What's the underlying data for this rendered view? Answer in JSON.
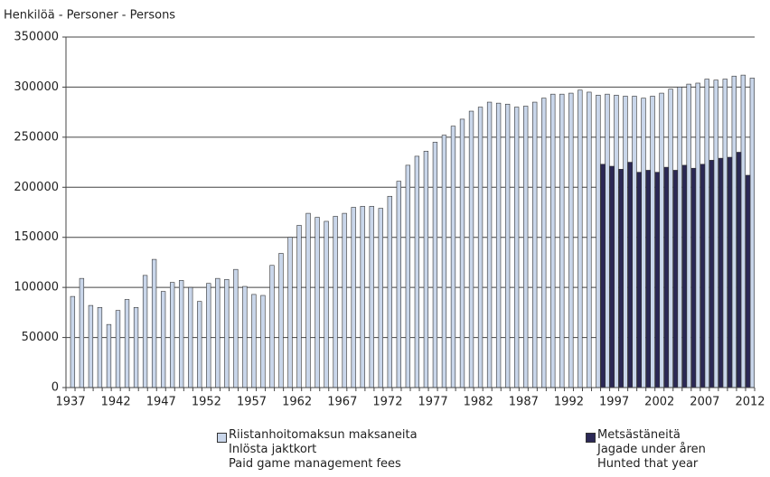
{
  "chart_data": {
    "type": "bar",
    "y_label": "Henkilöä - Personer - Persons",
    "categories": [
      "1937",
      null,
      null,
      null,
      null,
      "1942",
      null,
      null,
      null,
      null,
      "1947",
      null,
      null,
      null,
      null,
      "1952",
      null,
      null,
      null,
      null,
      "1957",
      null,
      null,
      null,
      null,
      "1962",
      null,
      null,
      null,
      null,
      "1967",
      null,
      null,
      null,
      null,
      "1972",
      null,
      null,
      null,
      null,
      "1977",
      null,
      null,
      null,
      null,
      "1982",
      null,
      null,
      null,
      null,
      "1987",
      null,
      null,
      null,
      null,
      "1992",
      null,
      null,
      null,
      null,
      "1997",
      null,
      null,
      null,
      null,
      "2002",
      null,
      null,
      null,
      null,
      "2007",
      null,
      null,
      null,
      null,
      "2012"
    ],
    "series": [
      {
        "name": "Riistanhoitomaksun maksaneita\nInlösta jaktkort\nPaid game management fees",
        "color": "#c9d6ea",
        "values": [
          91000,
          109000,
          82000,
          80000,
          63000,
          77000,
          88000,
          80000,
          112000,
          128000,
          96000,
          105000,
          107000,
          100000,
          86000,
          104000,
          109000,
          108000,
          118000,
          101000,
          93000,
          92000,
          122000,
          134000,
          150000,
          162000,
          174000,
          170000,
          166000,
          171000,
          174000,
          180000,
          181000,
          181000,
          179000,
          191000,
          206000,
          222000,
          231000,
          236000,
          245000,
          252000,
          261000,
          268000,
          276000,
          280000,
          285000,
          284000,
          283000,
          280000,
          281000,
          285000,
          289000,
          293000,
          293000,
          294000,
          297000,
          295000,
          292000,
          293000,
          292000,
          291000,
          291000,
          289000,
          291000,
          294000,
          298000,
          300000,
          303000,
          304000,
          308000,
          307000,
          308000,
          311000,
          312000,
          309000
        ]
      },
      {
        "name": "Metsästäneitä\nJagade under åren\nHunted that year",
        "color": "#2b2856",
        "values": [
          null,
          null,
          null,
          null,
          null,
          null,
          null,
          null,
          null,
          null,
          null,
          null,
          null,
          null,
          null,
          null,
          null,
          null,
          null,
          null,
          null,
          null,
          null,
          null,
          null,
          null,
          null,
          null,
          null,
          null,
          null,
          null,
          null,
          null,
          null,
          null,
          null,
          null,
          null,
          null,
          null,
          null,
          null,
          null,
          null,
          null,
          null,
          null,
          null,
          null,
          null,
          null,
          null,
          null,
          null,
          null,
          null,
          null,
          null,
          223000,
          221000,
          218000,
          225000,
          215000,
          217000,
          215000,
          220000,
          217000,
          222000,
          219000,
          223000,
          227000,
          229000,
          230000,
          235000,
          212000
        ]
      }
    ],
    "ylim": [
      0,
      350000
    ],
    "yticks": [
      0,
      50000,
      100000,
      150000,
      200000,
      250000,
      300000,
      350000
    ],
    "grid": true
  }
}
